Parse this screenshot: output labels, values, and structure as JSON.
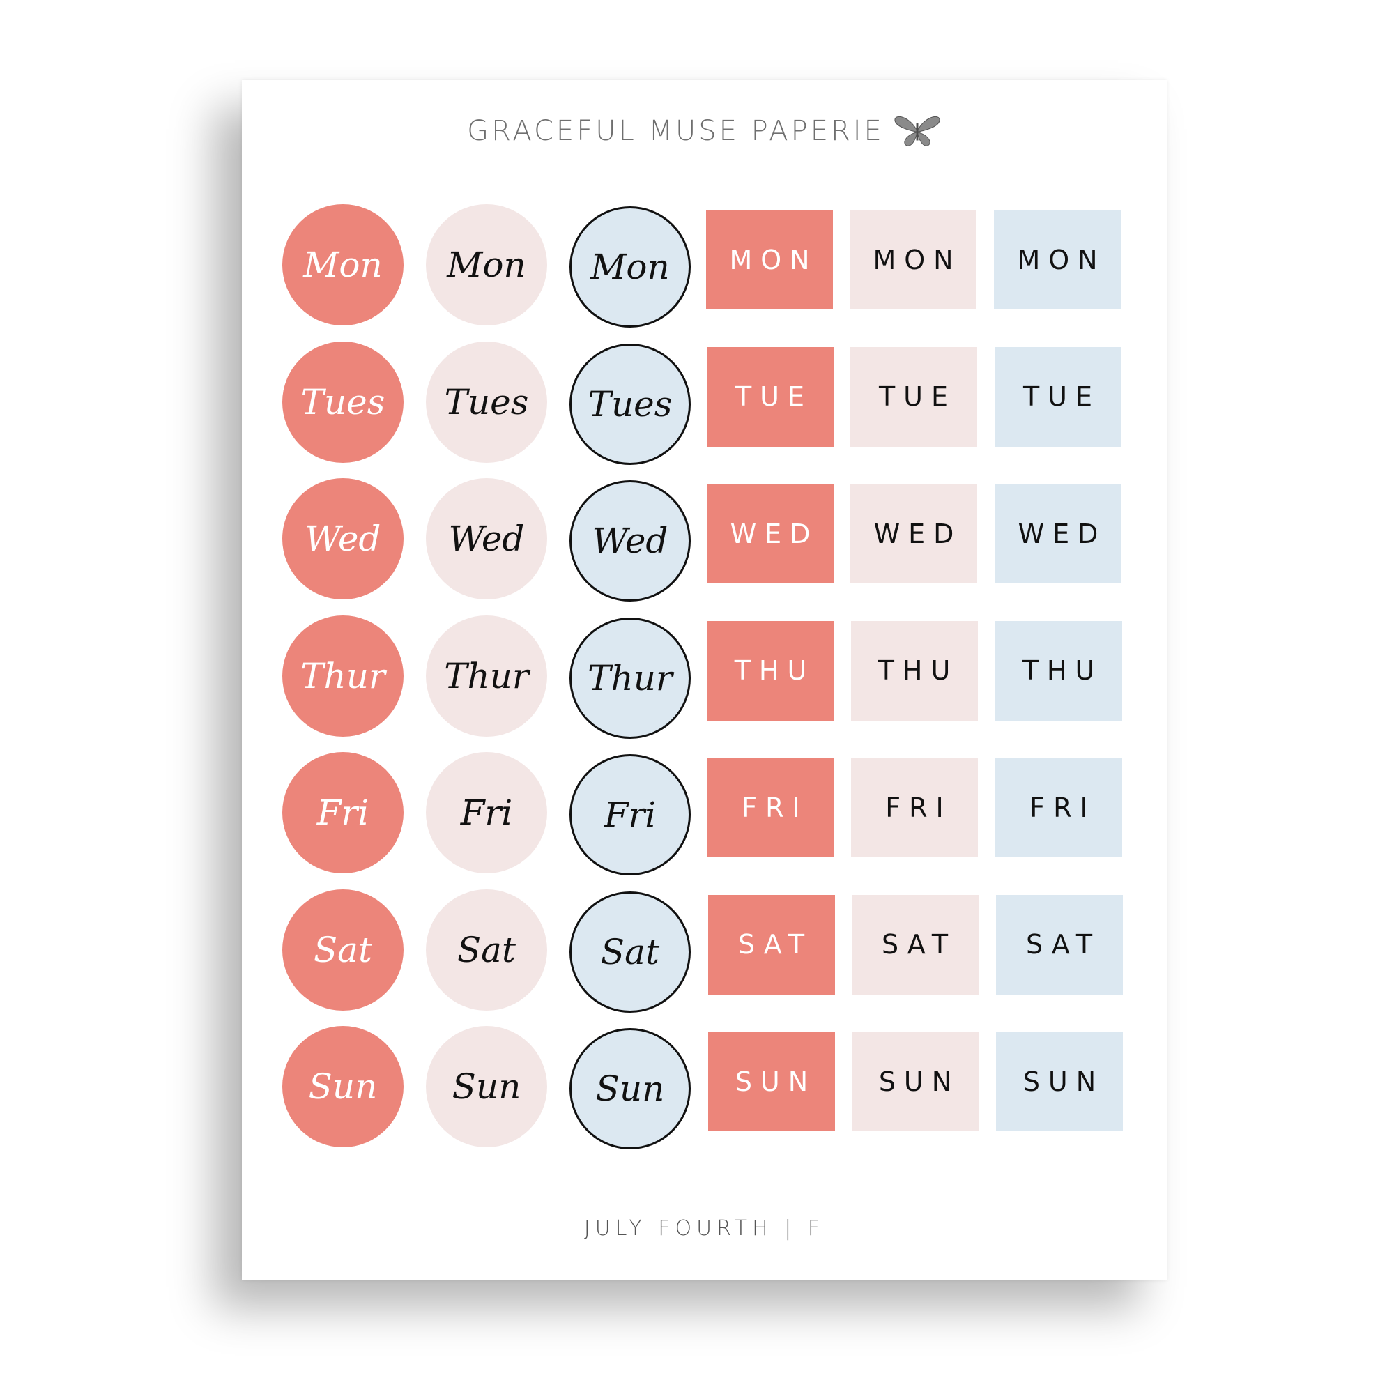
{
  "header": {
    "brand": "GRACEFUL MUSE PAPERIE",
    "logo_icon": "butterfly-icon"
  },
  "colors": {
    "coral": "#EC857A",
    "blush": "#F3E6E5",
    "blue": "#DCE8F1",
    "text_dark": "#111111",
    "text_light": "#ffffff"
  },
  "rows": [
    {
      "script": "Mon",
      "caps": "MON"
    },
    {
      "script": "Tues",
      "caps": "TUE"
    },
    {
      "script": "Wed",
      "caps": "WED"
    },
    {
      "script": "Thur",
      "caps": "THU"
    },
    {
      "script": "Fri",
      "caps": "FRI"
    },
    {
      "script": "Sat",
      "caps": "SAT"
    },
    {
      "script": "Sun",
      "caps": "SUN"
    }
  ],
  "footer": {
    "text": "JULY FOURTH | F"
  }
}
